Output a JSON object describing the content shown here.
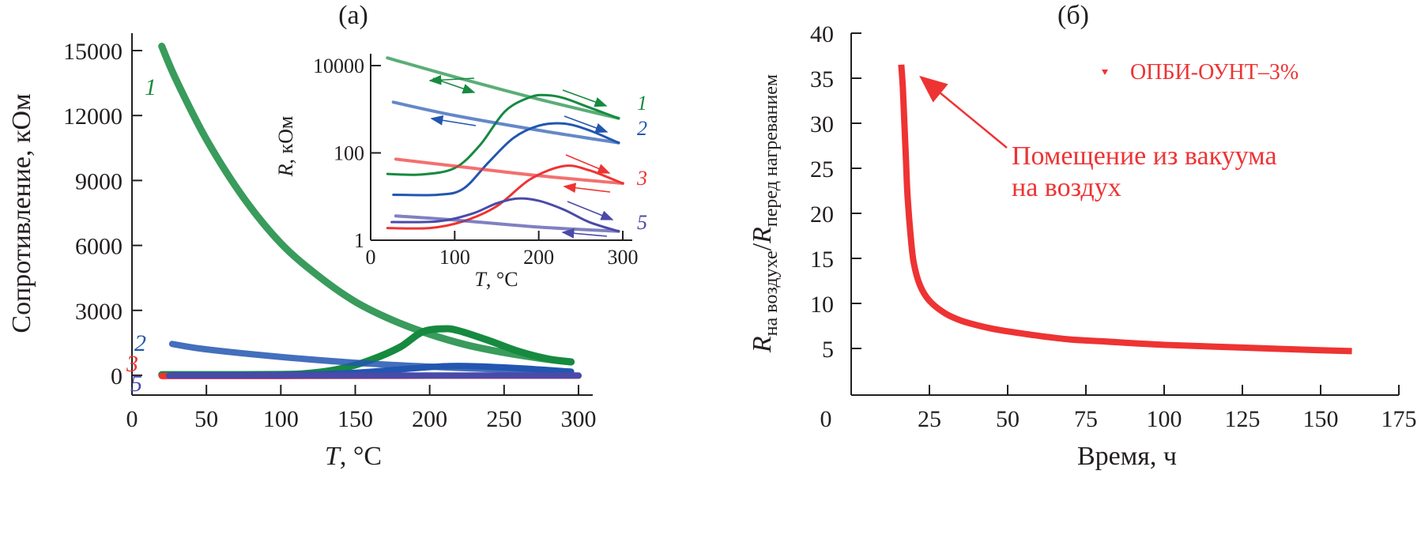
{
  "chart_data": [
    {
      "panel": "(а)",
      "type": "line",
      "title": "(а)",
      "xlabel_italic": "T",
      "xlabel_rest": ", °C",
      "ylabel": "Сопротивление, кОм",
      "xlim": [
        0,
        310
      ],
      "ylim": [
        -1000,
        16000
      ],
      "xticks": [
        0,
        50,
        100,
        150,
        200,
        250,
        300
      ],
      "yticks": [
        0,
        3000,
        6000,
        9000,
        12000,
        15000
      ],
      "series": [
        {
          "name": "1",
          "color": "#168a3f",
          "kind": "cooling",
          "x": [
            20,
            30,
            50,
            75,
            100,
            125,
            150,
            175,
            200,
            225,
            250,
            275,
            295
          ],
          "y": [
            15200,
            13600,
            10900,
            8200,
            6100,
            4600,
            3400,
            2550,
            1900,
            1400,
            1050,
            780,
            620
          ]
        },
        {
          "name": "1",
          "color": "#168a3f",
          "kind": "heating",
          "x": [
            20,
            50,
            100,
            120,
            140,
            160,
            180,
            195,
            210,
            220,
            240,
            260,
            280,
            295
          ],
          "y": [
            30,
            30,
            40,
            100,
            300,
            700,
            1300,
            2000,
            2150,
            2050,
            1600,
            1100,
            750,
            620
          ]
        },
        {
          "name": "2",
          "color": "#2256b0",
          "kind": "cooling",
          "x": [
            27,
            50,
            100,
            150,
            200,
            250,
            295
          ],
          "y": [
            1450,
            1200,
            850,
            580,
            400,
            260,
            170
          ]
        },
        {
          "name": "2",
          "color": "#2256b0",
          "kind": "heating",
          "x": [
            27,
            100,
            150,
            200,
            225,
            260,
            295
          ],
          "y": [
            10,
            20,
            120,
            380,
            430,
            330,
            170
          ]
        },
        {
          "name": "3",
          "color": "#ee3333",
          "kind": "both",
          "x": [
            20,
            100,
            200,
            300
          ],
          "y": [
            -30,
            -30,
            -20,
            -20
          ]
        },
        {
          "name": "5",
          "color": "#4a4aa8",
          "kind": "both",
          "x": [
            25,
            100,
            200,
            300
          ],
          "y": [
            -10,
            -10,
            -10,
            -10
          ]
        }
      ],
      "curve_labels": [
        {
          "text": "1",
          "color": "#168a3f"
        },
        {
          "text": "2",
          "color": "#2256b0"
        },
        {
          "text": "3",
          "color": "#ee3333"
        },
        {
          "text": "5",
          "color": "#4a4aa8"
        }
      ],
      "inset": {
        "type": "line",
        "yscale": "log",
        "xlabel_italic": "T",
        "xlabel_rest": ", °C",
        "ylabel_italic": "R",
        "ylabel_rest": ", кОм",
        "xlim": [
          0,
          300
        ],
        "ylim": [
          1,
          15000
        ],
        "xticks": [
          0,
          100,
          200,
          300
        ],
        "yticks": [
          1,
          100,
          10000
        ],
        "series": [
          {
            "name": "1",
            "color": "#168a3f",
            "kind": "cooling",
            "x": [
              20,
              100,
              200,
              295
            ],
            "y": [
              15000,
              5500,
              1700,
              620
            ]
          },
          {
            "name": "1",
            "color": "#168a3f",
            "kind": "heating",
            "x": [
              20,
              60,
              100,
              130,
              160,
              190,
              210,
              230,
              260,
              295
            ],
            "y": [
              33,
              32,
              45,
              150,
              900,
              1900,
              2100,
              1800,
              1100,
              620
            ]
          },
          {
            "name": "2",
            "color": "#2256b0",
            "kind": "cooling",
            "x": [
              27,
              100,
              200,
              295
            ],
            "y": [
              1450,
              720,
              330,
              170
            ]
          },
          {
            "name": "2",
            "color": "#2256b0",
            "kind": "heating",
            "x": [
              27,
              80,
              110,
              140,
              170,
              200,
              230,
              260,
              295
            ],
            "y": [
              11,
              11,
              15,
              60,
              220,
              420,
              470,
              330,
              170
            ]
          },
          {
            "name": "3",
            "color": "#ee3333",
            "kind": "cooling",
            "x": [
              30,
              100,
              200,
              300
            ],
            "y": [
              72,
              50,
              30,
              20
            ]
          },
          {
            "name": "3",
            "color": "#ee3333",
            "kind": "heating",
            "x": [
              20,
              70,
              110,
              150,
              190,
              230,
              260,
              300
            ],
            "y": [
              1.9,
              1.9,
              2.7,
              6,
              25,
              50,
              40,
              20
            ]
          },
          {
            "name": "5",
            "color": "#4a4aa8",
            "kind": "cooling",
            "x": [
              30,
              100,
              200,
              295
            ],
            "y": [
              3.6,
              2.9,
              2.0,
              1.6
            ]
          },
          {
            "name": "5",
            "color": "#4a4aa8",
            "kind": "heating",
            "x": [
              25,
              80,
              120,
              150,
              175,
              200,
              230,
              260,
              295
            ],
            "y": [
              2.6,
              2.7,
              4,
              7,
              9,
              8,
              5,
              2.6,
              1.6
            ]
          }
        ],
        "curve_labels": [
          {
            "text": "1",
            "color": "#168a3f"
          },
          {
            "text": "2",
            "color": "#2256b0"
          },
          {
            "text": "3",
            "color": "#ee3333"
          },
          {
            "text": "5",
            "color": "#4a4aa8"
          }
        ]
      }
    },
    {
      "panel": "(б)",
      "type": "line",
      "title": "(б)",
      "xlabel": "Время, ч",
      "ylabel_main": "R",
      "ylabel_sub1": "на воздухе",
      "ylabel_sep": "/",
      "ylabel_sub2": "перед нагреванием",
      "xlim": [
        0,
        175
      ],
      "ylim": [
        0,
        40
      ],
      "xticks": [
        0,
        25,
        50,
        75,
        100,
        125,
        150,
        175
      ],
      "yticks": [
        5,
        10,
        15,
        20,
        25,
        30,
        35,
        40
      ],
      "x_zero_label": "0",
      "series": [
        {
          "name": "ОПБИ-ОУНТ–3%",
          "color": "#ee3333",
          "x": [
            16,
            16.5,
            17,
            17.5,
            18,
            19,
            20,
            22,
            25,
            30,
            35,
            40,
            45,
            50,
            60,
            70,
            80,
            100,
            125,
            150,
            160
          ],
          "y": [
            36.5,
            34,
            30,
            26,
            22,
            17.5,
            14.5,
            12,
            10.3,
            8.9,
            8.1,
            7.6,
            7.2,
            6.9,
            6.4,
            6.0,
            5.8,
            5.4,
            5.1,
            4.8,
            4.7
          ]
        }
      ],
      "legend": {
        "label": "ОПБИ-ОУНТ–3%",
        "marker": "down-triangle",
        "placement": "top-right"
      },
      "annotation": {
        "line1": "Помещение из вакуума",
        "line2": "на воздух",
        "points_to": {
          "x": 18,
          "y": 36
        },
        "color": "#ee3333"
      }
    }
  ]
}
